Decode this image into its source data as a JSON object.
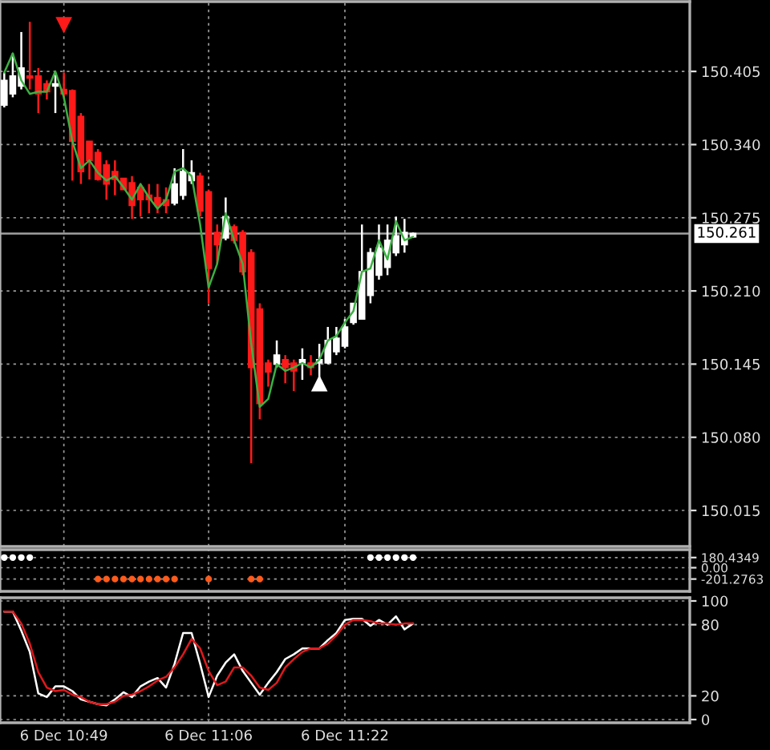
{
  "chart_data": [
    {
      "type": "candlestick",
      "categories": [
        null,
        null,
        null,
        null,
        null,
        null,
        null,
        null,
        null,
        null,
        null,
        null,
        null,
        null,
        null,
        null,
        null,
        null,
        null,
        null,
        null,
        null,
        null,
        null,
        null,
        null,
        null,
        null,
        null,
        null,
        null,
        null,
        null,
        null,
        null,
        null,
        null,
        null,
        null,
        null,
        null,
        null,
        null,
        null,
        null,
        null,
        null,
        null,
        null,
        null,
        null,
        null,
        null,
        null,
        null,
        null,
        null,
        null,
        null,
        null,
        null,
        null,
        null,
        null,
        null,
        null,
        null,
        null,
        null,
        null,
        null,
        null,
        null,
        null,
        null,
        null,
        null,
        null,
        null,
        null,
        null
      ],
      "ohlc": [
        [
          150.375,
          150.404,
          150.373,
          150.397
        ],
        [
          150.385,
          150.421,
          150.382,
          150.401
        ],
        [
          150.392,
          150.44,
          150.389,
          150.408
        ],
        [
          150.401,
          150.449,
          150.389,
          150.399
        ],
        [
          150.401,
          150.408,
          150.368,
          150.385
        ],
        [
          150.394,
          150.397,
          150.38,
          150.387
        ],
        [
          150.392,
          150.402,
          150.368,
          150.394
        ],
        [
          150.389,
          150.404,
          150.382,
          150.385
        ],
        [
          150.388,
          150.389,
          150.308,
          150.343
        ],
        [
          150.365,
          150.368,
          150.305,
          150.316
        ],
        [
          150.343,
          150.343,
          150.309,
          150.326
        ],
        [
          150.333,
          150.336,
          150.308,
          150.309
        ],
        [
          150.322,
          150.326,
          150.291,
          150.305
        ],
        [
          150.316,
          150.326,
          150.295,
          150.309
        ],
        [
          150.31,
          150.31,
          150.3,
          150.3
        ],
        [
          150.306,
          150.312,
          150.274,
          150.286
        ],
        [
          150.302,
          150.305,
          150.276,
          150.291
        ],
        [
          150.295,
          150.305,
          150.279,
          150.291
        ],
        [
          150.293,
          150.305,
          150.279,
          150.286
        ],
        [
          150.291,
          150.302,
          150.279,
          150.286
        ],
        [
          150.288,
          150.319,
          150.286,
          150.305
        ],
        [
          150.295,
          150.336,
          150.291,
          150.316
        ],
        [
          150.308,
          150.326,
          150.305,
          150.315
        ],
        [
          150.312,
          150.315,
          150.276,
          150.281
        ],
        [
          150.298,
          150.3,
          150.199,
          150.23
        ],
        [
          150.262,
          150.269,
          150.234,
          150.251
        ],
        [
          150.257,
          150.293,
          150.255,
          150.276
        ],
        [
          150.267,
          150.269,
          150.252,
          150.255
        ],
        [
          150.262,
          150.264,
          150.224,
          150.227
        ],
        [
          150.244,
          150.247,
          150.057,
          150.142
        ],
        [
          150.194,
          150.199,
          150.096,
          150.11
        ],
        [
          150.146,
          150.149,
          150.125,
          150.138
        ],
        [
          150.145,
          150.166,
          150.142,
          150.153
        ],
        [
          150.149,
          150.153,
          150.128,
          150.142
        ],
        [
          150.146,
          150.149,
          150.121,
          150.139
        ],
        [
          150.146,
          150.159,
          150.131,
          150.149
        ],
        [
          150.146,
          150.153,
          150.135,
          150.142
        ],
        [
          150.146,
          150.163,
          150.128,
          150.149
        ],
        [
          150.146,
          150.178,
          150.145,
          150.166
        ],
        [
          150.156,
          150.178,
          150.153,
          150.168
        ],
        [
          150.161,
          150.185,
          150.159,
          150.178
        ],
        [
          150.182,
          150.199,
          150.18,
          150.199
        ],
        [
          150.185,
          150.269,
          150.185,
          150.227
        ],
        [
          150.206,
          150.248,
          150.199,
          150.244
        ],
        [
          150.224,
          150.269,
          150.22,
          150.248
        ],
        [
          150.231,
          150.269,
          150.224,
          150.255
        ],
        [
          150.244,
          150.276,
          150.241,
          150.259
        ],
        [
          150.251,
          150.274,
          150.244,
          150.262
        ],
        [
          150.258,
          150.262,
          150.257,
          150.261
        ],
        null,
        null,
        null,
        null,
        null,
        null,
        null,
        null,
        null,
        null,
        null,
        null,
        null,
        null,
        null,
        null,
        null,
        null,
        null,
        null,
        null,
        null,
        null,
        null,
        null,
        null,
        null,
        null,
        null,
        null,
        null,
        null
      ],
      "colors": [
        "#ffffff",
        "#ffffff",
        "#ffffff",
        "#ff1a1a",
        "#ff1a1a",
        "#ff1a1a",
        "#ffffff",
        "#ff1a1a",
        "#ff1a1a",
        "#ff1a1a",
        "#ff1a1a",
        "#ff1a1a",
        "#ff1a1a",
        "#ff1a1a",
        "#ff1a1a",
        "#ff1a1a",
        "#ff1a1a",
        "#ff1a1a",
        "#ff1a1a",
        "#ff1a1a",
        "#ffffff",
        "#ffffff",
        "#ffffff",
        "#ff1a1a",
        "#ff1a1a",
        "#ff1a1a",
        "#ffffff",
        "#ff1a1a",
        "#ff1a1a",
        "#ff1a1a",
        "#ff1a1a",
        "#ff1a1a",
        "#ffffff",
        "#ff1a1a",
        "#ff1a1a",
        "#ffffff",
        "#ff1a1a",
        "#ffffff",
        "#ffffff",
        "#ffffff",
        "#ffffff",
        "#ffffff",
        "#ffffff",
        "#ffffff",
        "#ffffff",
        "#ffffff",
        "#ffffff",
        "#ffffff",
        "#ffffff",
        null,
        null,
        null,
        null,
        null,
        null,
        null,
        null,
        null,
        null,
        null,
        null,
        null,
        null,
        null,
        null,
        null,
        null,
        null,
        null,
        null,
        null,
        null,
        null,
        null,
        null,
        null,
        null,
        null,
        null,
        null,
        null
      ],
      "series": [
        {
          "type": "line",
          "color": "#3cb043",
          "values": [
            150.404,
            150.421,
            150.397,
            150.385,
            150.387,
            150.387,
            150.405,
            150.382,
            150.343,
            150.319,
            150.326,
            150.315,
            150.308,
            150.312,
            150.302,
            150.291,
            150.305,
            150.293,
            150.283,
            150.291,
            150.316,
            150.319,
            150.312,
            150.269,
            150.213,
            150.234,
            150.279,
            150.255,
            150.234,
            150.163,
            150.107,
            150.114,
            150.145,
            150.139,
            150.142,
            150.146,
            150.142,
            150.149,
            150.166,
            150.17,
            150.182,
            150.192,
            150.227,
            150.23,
            150.255,
            150.238,
            150.272,
            150.255,
            150.258,
            null,
            null,
            null,
            null,
            null,
            null,
            null,
            null,
            null,
            null,
            null,
            null,
            null,
            null,
            null,
            null,
            null,
            null,
            null,
            null,
            null,
            null,
            null,
            null,
            null,
            null,
            null,
            null,
            null,
            null,
            null,
            null
          ]
        },
        {
          "type": "scatter",
          "marker": "triangle",
          "color": "#ff1a1a",
          "values": [
            null,
            null,
            null,
            null,
            null,
            null,
            null,
            150.446,
            null,
            null,
            null,
            null,
            null,
            null,
            null,
            null,
            null,
            null,
            null,
            null,
            null,
            null,
            null,
            null,
            null,
            null,
            null,
            null,
            null,
            null,
            null,
            null,
            null,
            null,
            null,
            null,
            null,
            null,
            null,
            null,
            null,
            null,
            null,
            null,
            null,
            null,
            null,
            null,
            null,
            null,
            null,
            null,
            null,
            null,
            null,
            null,
            null,
            null,
            null,
            null,
            null,
            null,
            null,
            null,
            null,
            null,
            null,
            null,
            null,
            null,
            null,
            null,
            null,
            null,
            null,
            null,
            null,
            null,
            null,
            null,
            null
          ]
        },
        {
          "type": "scatter",
          "marker": "triangle",
          "color": "#ffffff",
          "values": [
            null,
            null,
            null,
            null,
            null,
            null,
            null,
            null,
            null,
            null,
            null,
            null,
            null,
            null,
            null,
            null,
            null,
            null,
            null,
            null,
            null,
            null,
            null,
            null,
            null,
            null,
            null,
            null,
            null,
            null,
            null,
            null,
            null,
            null,
            null,
            null,
            null,
            150.128,
            null,
            null,
            null,
            null,
            null,
            null,
            null,
            null,
            null,
            null,
            null,
            null,
            null,
            null,
            null,
            null,
            null,
            null,
            null,
            null,
            null,
            null,
            null,
            null,
            null,
            null,
            null,
            null,
            null,
            null,
            null,
            null,
            null,
            null,
            null,
            null,
            null,
            null,
            null,
            null,
            null,
            null,
            null
          ]
        }
      ],
      "ref_lines": [
        {
          "axis": "y",
          "value": 150.261,
          "label": "150.261",
          "color": "#a0a0a0"
        }
      ],
      "ylim": [
        149.983,
        150.467
      ],
      "yticks": [
        150.405,
        {
          "value": 150.34,
          "label": "150.340"
        },
        150.275,
        {
          "value": 150.21,
          "label": "150.210"
        },
        150.145,
        {
          "value": 150.08,
          "label": "150.080"
        },
        150.015
      ],
      "grid": true,
      "tick_labels": "y"
    },
    {
      "type": "scatter",
      "marker": "circle",
      "categories": [
        null,
        null,
        null,
        null,
        null,
        null,
        null,
        null,
        null,
        null,
        null,
        null,
        null,
        null,
        null,
        null,
        null,
        null,
        null,
        null,
        null,
        null,
        null,
        null,
        null,
        null,
        null,
        null,
        null,
        null,
        null,
        null,
        null,
        null,
        null,
        null,
        null,
        null,
        null,
        null,
        null,
        null,
        null,
        null,
        null,
        null,
        null,
        null,
        null,
        null,
        null,
        null,
        null,
        null,
        null,
        null,
        null,
        null,
        null,
        null,
        null,
        null,
        null,
        null,
        null,
        null,
        null,
        null,
        null,
        null,
        null,
        null,
        null,
        null,
        null,
        null,
        null,
        null,
        null,
        null,
        null
      ],
      "series": [
        {
          "color": "#ffffff",
          "values": [
            180.4349,
            180.4349,
            180.4349,
            180.4349,
            null,
            null,
            null,
            null,
            null,
            null,
            null,
            null,
            null,
            null,
            null,
            null,
            null,
            null,
            null,
            null,
            null,
            null,
            null,
            null,
            null,
            null,
            null,
            null,
            null,
            null,
            null,
            null,
            null,
            null,
            null,
            null,
            null,
            null,
            null,
            null,
            null,
            null,
            null,
            180.4349,
            180.4349,
            180.4349,
            180.4349,
            180.4349,
            180.4349,
            null,
            null,
            null,
            null,
            null,
            null,
            null,
            null,
            null,
            null,
            null,
            null,
            null,
            null,
            null,
            null,
            null,
            null,
            null,
            null,
            null,
            null,
            null,
            null,
            null,
            null,
            null,
            null,
            null,
            null,
            null,
            null
          ]
        },
        {
          "color": "#ff5a1a",
          "values": [
            null,
            null,
            null,
            null,
            null,
            null,
            null,
            null,
            null,
            null,
            null,
            -201.2763,
            -201.2763,
            -201.2763,
            -201.2763,
            -201.2763,
            -201.2763,
            -201.2763,
            -201.2763,
            -201.2763,
            -201.2763,
            null,
            null,
            null,
            -201.2763,
            null,
            null,
            null,
            null,
            -201.2763,
            -201.2763,
            null,
            null,
            null,
            null,
            null,
            null,
            null,
            null,
            null,
            null,
            null,
            null,
            null,
            null,
            null,
            null,
            null,
            null,
            null,
            null,
            null,
            null,
            null,
            null,
            null,
            null,
            null,
            null,
            null,
            null,
            null,
            null,
            null,
            null,
            null,
            null,
            null,
            null,
            null,
            null,
            null,
            null,
            null,
            null,
            null,
            null,
            null,
            null,
            null,
            null
          ]
        }
      ],
      "ylim": [
        -420,
        320
      ],
      "yticks": [
        180.4349,
        {
          "value": 0,
          "label": "0.00"
        },
        -201.2763
      ],
      "grid": true,
      "tick_labels": "y"
    },
    {
      "type": "line",
      "categories": [
        null,
        null,
        null,
        null,
        null,
        null,
        null,
        "6 Dec 10:49",
        null,
        null,
        null,
        null,
        null,
        null,
        null,
        null,
        null,
        null,
        null,
        null,
        null,
        null,
        null,
        null,
        "6 Dec 11:06",
        null,
        null,
        null,
        null,
        null,
        null,
        null,
        null,
        null,
        null,
        null,
        null,
        null,
        null,
        null,
        "6 Dec 11:22",
        null,
        null,
        null,
        null,
        null,
        null,
        null,
        null,
        null,
        null,
        null,
        null,
        null,
        null,
        null,
        null,
        null,
        null,
        null,
        null,
        null,
        null,
        null,
        null,
        null,
        null,
        null,
        null,
        null,
        null,
        null,
        null,
        null,
        null,
        null,
        null,
        null,
        null,
        null,
        null
      ],
      "series": [
        {
          "color": "#ffffff",
          "values": [
            91,
            91,
            75,
            57,
            22,
            19,
            28,
            28,
            24,
            17,
            15,
            13,
            12,
            17,
            23,
            19,
            28,
            32,
            35,
            27,
            47,
            73,
            73,
            47,
            19,
            37,
            48,
            55,
            41,
            31,
            21,
            31,
            40,
            51,
            55,
            60,
            60,
            60,
            67,
            73,
            84,
            85,
            85,
            79,
            84,
            80,
            87,
            76,
            81,
            null,
            null,
            null,
            null,
            null,
            null,
            null,
            null,
            null,
            null,
            null,
            null,
            null,
            null,
            null,
            null,
            null,
            null,
            null,
            null,
            null,
            null,
            null,
            null,
            null,
            null,
            null,
            null,
            null,
            null,
            null,
            null
          ]
        },
        {
          "color": "#e0191c",
          "values": [
            91,
            91,
            81,
            64,
            40,
            27,
            24,
            25,
            21,
            19,
            15,
            13,
            13,
            15,
            20,
            21,
            24,
            28,
            33,
            36,
            44,
            55,
            68,
            60,
            41,
            29,
            32,
            44,
            44,
            37,
            27,
            25,
            31,
            44,
            51,
            57,
            60,
            60,
            64,
            71,
            80,
            84,
            84,
            83,
            81,
            81,
            80,
            81,
            81,
            null,
            null,
            null,
            null,
            null,
            null,
            null,
            null,
            null,
            null,
            null,
            null,
            null,
            null,
            null,
            null,
            null,
            null,
            null,
            null,
            null,
            null,
            null,
            null,
            null,
            null,
            null,
            null,
            null,
            null,
            null,
            null
          ]
        }
      ],
      "ylim": [
        -2.7,
        102.7
      ],
      "yticks": [
        100,
        80,
        20,
        0
      ],
      "grid": true
    }
  ]
}
